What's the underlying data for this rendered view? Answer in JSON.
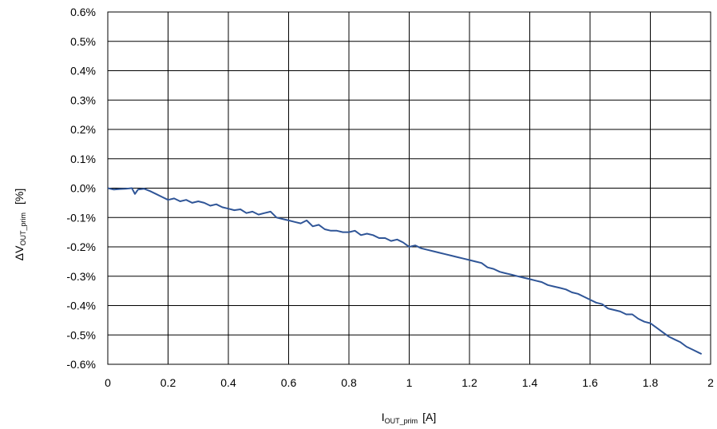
{
  "chart_data": {
    "type": "line",
    "title": "",
    "xlabel": {
      "main": "I",
      "sub": "OUT_prim",
      "unit": "[A]"
    },
    "ylabel": {
      "prefix": "ΔV",
      "sub": "OUT_prim",
      "unit": "[%]"
    },
    "xlim": [
      0,
      2
    ],
    "ylim": [
      -0.6,
      0.6
    ],
    "x_ticks": [
      "0",
      "0.2",
      "0.4",
      "0.6",
      "0.8",
      "1",
      "1.2",
      "1.4",
      "1.6",
      "1.8",
      "2"
    ],
    "x_tick_values": [
      0,
      0.2,
      0.4,
      0.6,
      0.8,
      1.0,
      1.2,
      1.4,
      1.6,
      1.8,
      2.0
    ],
    "y_ticks": [
      "0.6%",
      "0.5%",
      "0.4%",
      "0.3%",
      "0.2%",
      "0.1%",
      "0.0%",
      "-0.1%",
      "-0.2%",
      "-0.3%",
      "-0.4%",
      "-0.5%",
      "-0.6%"
    ],
    "y_tick_values": [
      0.6,
      0.5,
      0.4,
      0.3,
      0.2,
      0.1,
      0.0,
      -0.1,
      -0.2,
      -0.3,
      -0.4,
      -0.5,
      -0.6
    ],
    "grid": true,
    "legend": "none",
    "series": [
      {
        "color": "#2f5597",
        "x": [
          0.0,
          0.02,
          0.04,
          0.06,
          0.08,
          0.09,
          0.1,
          0.12,
          0.14,
          0.16,
          0.18,
          0.2,
          0.22,
          0.24,
          0.26,
          0.28,
          0.3,
          0.32,
          0.34,
          0.36,
          0.38,
          0.4,
          0.42,
          0.44,
          0.46,
          0.48,
          0.5,
          0.52,
          0.54,
          0.56,
          0.58,
          0.6,
          0.62,
          0.64,
          0.66,
          0.68,
          0.7,
          0.72,
          0.74,
          0.76,
          0.78,
          0.8,
          0.82,
          0.84,
          0.86,
          0.88,
          0.9,
          0.92,
          0.94,
          0.96,
          0.98,
          1.0,
          1.02,
          1.04,
          1.06,
          1.08,
          1.1,
          1.12,
          1.14,
          1.16,
          1.18,
          1.2,
          1.22,
          1.24,
          1.26,
          1.28,
          1.3,
          1.32,
          1.34,
          1.36,
          1.38,
          1.4,
          1.42,
          1.44,
          1.46,
          1.48,
          1.5,
          1.52,
          1.54,
          1.56,
          1.58,
          1.6,
          1.62,
          1.64,
          1.66,
          1.68,
          1.7,
          1.72,
          1.74,
          1.76,
          1.78,
          1.8,
          1.82,
          1.84,
          1.86,
          1.88,
          1.9,
          1.92,
          1.94,
          1.96,
          1.97
        ],
        "y": [
          0.0,
          -0.005,
          -0.003,
          -0.002,
          0.0,
          -0.02,
          -0.005,
          -0.002,
          -0.01,
          -0.02,
          -0.03,
          -0.04,
          -0.035,
          -0.045,
          -0.04,
          -0.05,
          -0.045,
          -0.05,
          -0.06,
          -0.055,
          -0.065,
          -0.07,
          -0.075,
          -0.072,
          -0.085,
          -0.08,
          -0.09,
          -0.085,
          -0.08,
          -0.1,
          -0.105,
          -0.11,
          -0.115,
          -0.12,
          -0.11,
          -0.13,
          -0.125,
          -0.14,
          -0.145,
          -0.145,
          -0.15,
          -0.15,
          -0.145,
          -0.16,
          -0.155,
          -0.16,
          -0.17,
          -0.17,
          -0.18,
          -0.175,
          -0.185,
          -0.2,
          -0.195,
          -0.205,
          -0.21,
          -0.215,
          -0.22,
          -0.225,
          -0.23,
          -0.235,
          -0.24,
          -0.245,
          -0.25,
          -0.255,
          -0.27,
          -0.275,
          -0.285,
          -0.29,
          -0.295,
          -0.3,
          -0.305,
          -0.31,
          -0.315,
          -0.32,
          -0.33,
          -0.335,
          -0.34,
          -0.345,
          -0.355,
          -0.36,
          -0.37,
          -0.38,
          -0.39,
          -0.395,
          -0.41,
          -0.415,
          -0.42,
          -0.43,
          -0.43,
          -0.445,
          -0.455,
          -0.46,
          -0.475,
          -0.49,
          -0.505,
          -0.515,
          -0.525,
          -0.54,
          -0.55,
          -0.56,
          -0.565
        ]
      }
    ]
  }
}
